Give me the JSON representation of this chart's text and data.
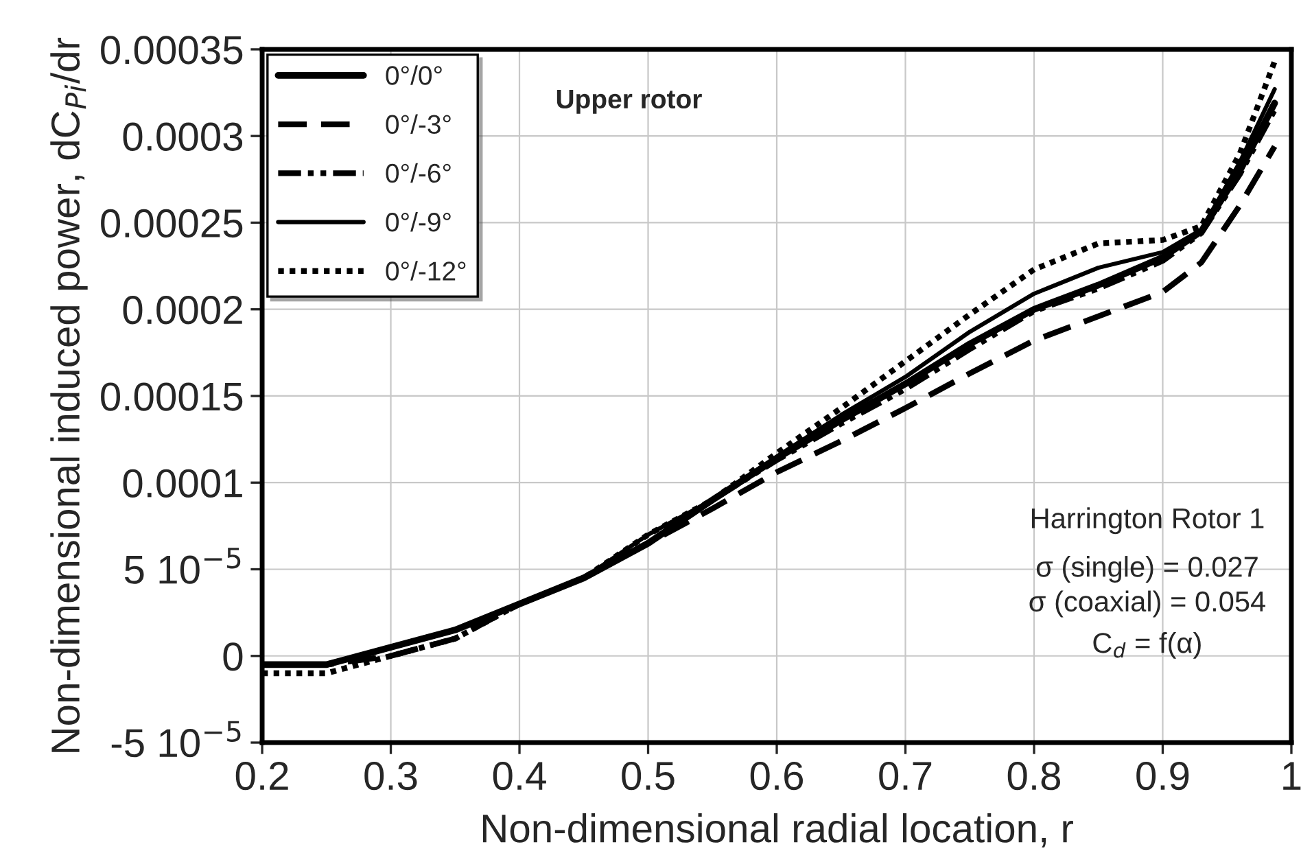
{
  "chart_data": {
    "type": "line",
    "xlabel": "Non-dimensional radial location, r",
    "ylabel": "Non-dimensional induced power, dC$_{Pi}$/dr",
    "x": [
      0.2,
      0.25,
      0.3,
      0.35,
      0.4,
      0.45,
      0.5,
      0.55,
      0.6,
      0.65,
      0.7,
      0.75,
      0.8,
      0.85,
      0.9,
      0.93,
      0.96,
      0.987
    ],
    "series": [
      {
        "name": "0°/0°",
        "color": "#000000",
        "line_style": "solid",
        "values": [
          -5e-06,
          -5e-06,
          5e-06,
          1.5e-05,
          3e-05,
          4.5e-05,
          6.5e-05,
          9e-05,
          0.000114,
          0.000136,
          0.000157,
          0.00018,
          0.0002,
          0.000214,
          0.00023,
          0.000245,
          0.00028,
          0.000319
        ]
      },
      {
        "name": "0°/-3°",
        "color": "#000000",
        "line_style": "dashed",
        "values": [
          -5e-06,
          -5e-06,
          0,
          1e-05,
          3e-05,
          4.5e-05,
          6.5e-05,
          8.5e-05,
          0.000106,
          0.000124,
          0.000143,
          0.000163,
          0.000182,
          0.000196,
          0.00021,
          0.000227,
          0.00026,
          0.000294
        ]
      },
      {
        "name": "0°/-6°",
        "color": "#000000",
        "line_style": "dashdotdot",
        "values": [
          -5e-06,
          -5e-06,
          5e-06,
          1.5e-05,
          3e-05,
          4.5e-05,
          6.5e-05,
          9e-05,
          0.000113,
          0.000134,
          0.000154,
          0.000177,
          0.000199,
          0.000212,
          0.000228,
          0.000244,
          0.000278,
          0.000315
        ]
      },
      {
        "name": "0°/-9°",
        "color": "#000000",
        "line_style": "solid",
        "values": [
          -5e-06,
          -5e-06,
          5e-06,
          1.5e-05,
          3e-05,
          4.5e-05,
          7e-05,
          9e-05,
          0.000115,
          0.000139,
          0.000161,
          0.000187,
          0.000209,
          0.000224,
          0.000233,
          0.000246,
          0.000285,
          0.000327
        ]
      },
      {
        "name": "0°/-12°",
        "color": "#000000",
        "line_style": "dotted",
        "values": [
          -1e-05,
          -1e-05,
          0,
          1e-05,
          3e-05,
          4.5e-05,
          7e-05,
          9e-05,
          0.000117,
          0.000143,
          0.00017,
          0.000197,
          0.000223,
          0.000238,
          0.00024,
          0.000248,
          0.00029,
          0.000343
        ]
      }
    ],
    "xlim": [
      0.2,
      1
    ],
    "xticks": [
      0.2,
      0.3,
      0.4,
      0.5,
      0.6,
      0.7,
      0.8,
      0.9,
      1
    ],
    "ylim": [
      -5e-05,
      0.00035
    ],
    "yticks": [
      {
        "value": -5e-05,
        "label": "-5 10$^{−5}$"
      },
      0,
      {
        "value": 5e-05,
        "label": "5 10$^{−5}$"
      },
      0.0001,
      0.00015,
      0.0002,
      0.00025,
      0.0003,
      0.00035
    ],
    "grid": true,
    "legend": "top left",
    "annotations": [
      "Upper rotor",
      "Harrington Rotor 1",
      "σ (single) = 0.027",
      "σ (coaxial) = 0.054",
      "C$_{d}$ = f(α)"
    ]
  }
}
